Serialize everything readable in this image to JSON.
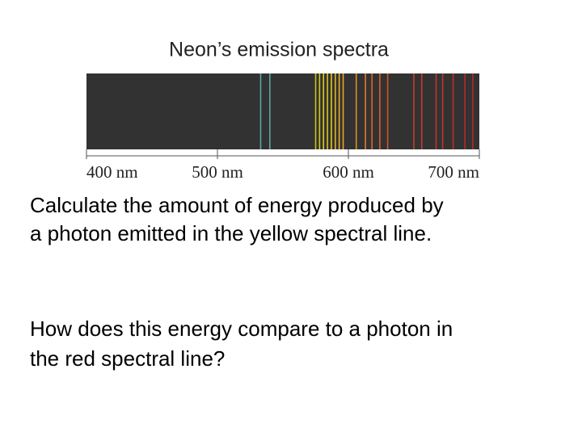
{
  "chart_data": {
    "type": "spectrum",
    "title": "Neon’s emission spectra",
    "xlim": [
      400,
      700
    ],
    "xticks": [
      {
        "value": 400,
        "label": "400 nm"
      },
      {
        "value": 500,
        "label": "500 nm"
      },
      {
        "value": 600,
        "label": "600 nm"
      },
      {
        "value": 700,
        "label": "700 nm"
      }
    ],
    "background": "#323232",
    "x": [
      533,
      540,
      575,
      578,
      581,
      584,
      587,
      590,
      593,
      596,
      606,
      613,
      618,
      624,
      630,
      650,
      656,
      667,
      672,
      680,
      689,
      695
    ],
    "colors": [
      "#5aa6a0",
      "#5aa6a0",
      "#c8c020",
      "#d4c818",
      "#e0cc20",
      "#d8c020",
      "#e8c81c",
      "#e0b820",
      "#e8b020",
      "#e8a820",
      "#e08a28",
      "#e07a28",
      "#d86828",
      "#d86028",
      "#d85028",
      "#c83c30",
      "#c83830",
      "#c03430",
      "#c83030",
      "#c02c2c",
      "#b82828",
      "#b82828"
    ]
  },
  "text": {
    "question_1": [
      "Calculate the amount of energy produced by",
      "a photon emitted in the yellow spectral line."
    ],
    "question_2": [
      "How does this energy compare to a photon in",
      "the red spectral line?"
    ]
  }
}
